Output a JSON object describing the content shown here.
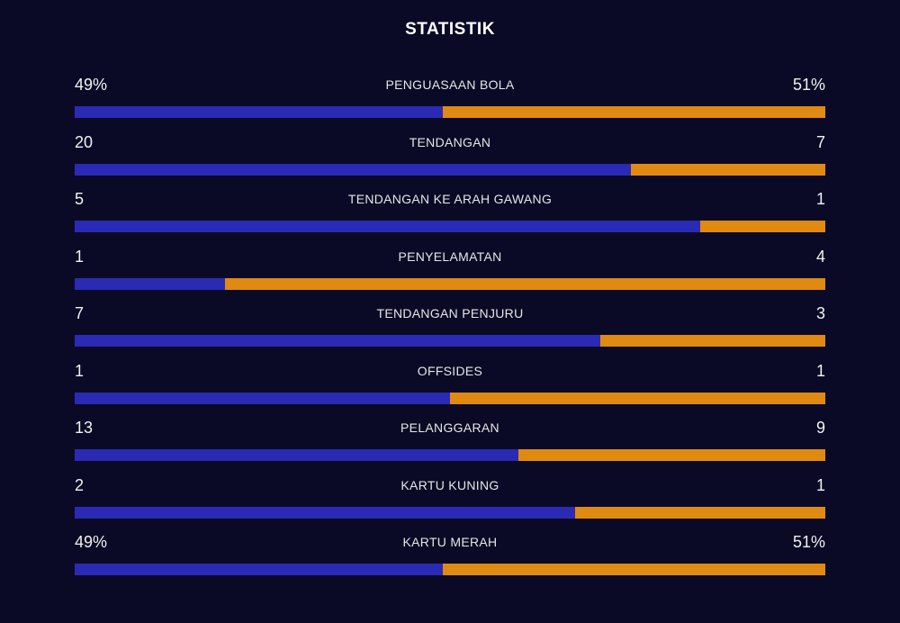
{
  "title": "STATISTIK",
  "colors": {
    "background": "#0a0a26",
    "home_bar": "#2a2ab5",
    "away_bar": "#e08a12"
  },
  "stats": [
    {
      "label": "PENGUASAAN BOLA",
      "left": "49%",
      "right": "51%",
      "left_share": 0.49
    },
    {
      "label": "TENDANGAN",
      "left": "20",
      "right": "7",
      "left_share": 0.741
    },
    {
      "label": "TENDANGAN KE ARAH GAWANG",
      "left": "5",
      "right": "1",
      "left_share": 0.833
    },
    {
      "label": "PENYELAMATAN",
      "left": "1",
      "right": "4",
      "left_share": 0.2
    },
    {
      "label": "TENDANGAN PENJURU",
      "left": "7",
      "right": "3",
      "left_share": 0.7
    },
    {
      "label": "OFFSIDES",
      "left": "1",
      "right": "1",
      "left_share": 0.5
    },
    {
      "label": "PELANGGARAN",
      "left": "13",
      "right": "9",
      "left_share": 0.591
    },
    {
      "label": "KARTU KUNING",
      "left": "2",
      "right": "1",
      "left_share": 0.667
    },
    {
      "label": "KARTU MERAH",
      "left": "49%",
      "right": "51%",
      "left_share": 0.49
    }
  ]
}
